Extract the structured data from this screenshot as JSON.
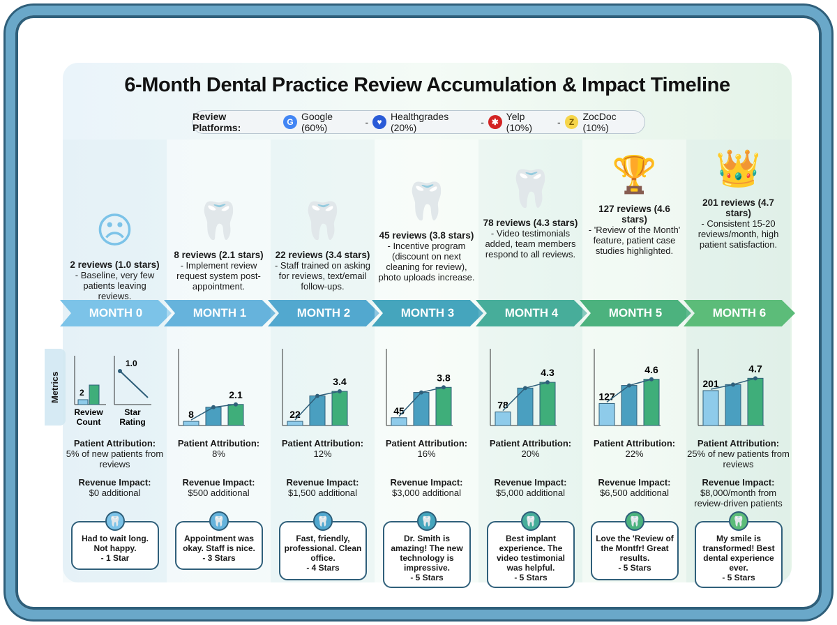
{
  "title": "6-Month Dental Practice Review Accumulation & Impact Timeline",
  "platforms": {
    "label": "Review Platforms:",
    "items": [
      {
        "name": "Google (60%)",
        "icon": "google-icon",
        "color": "#4285f4",
        "glyph": "G"
      },
      {
        "name": "Healthgrades (20%)",
        "icon": "healthgrades-icon",
        "color": "#2a5bd7",
        "glyph": "♥"
      },
      {
        "name": "Yelp (10%)",
        "icon": "yelp-icon",
        "color": "#d32323",
        "glyph": "✱"
      },
      {
        "name": "ZocDoc (10%)",
        "icon": "zocdoc-icon",
        "color": "#f6d54a",
        "glyph": "Z"
      }
    ],
    "separator": "-"
  },
  "metrics_label": "Metrics",
  "metric_labels": {
    "count": "Review Count",
    "rating": "Star Rating"
  },
  "attribution_label": "Patient Attribution:",
  "revenue_label": "Revenue Impact:",
  "months": [
    {
      "label": "MONTH 0",
      "headline": "2 reviews (1.0 stars)",
      "detail": "- Baseline, very few patients leaving reviews.",
      "reviews": 2,
      "stars": 1.0,
      "attribution": "5% of new patients from reviews",
      "revenue": "$0 additional",
      "quote": "Had to wait long. Not happy.",
      "quote_rating": "- 1 Star",
      "icon": "sad-face-icon",
      "color": "#7cc3e8"
    },
    {
      "label": "MONTH 1",
      "headline": "8 reviews (2.1 stars)",
      "detail": "- Implement review request system post-appointment.",
      "reviews": 8,
      "stars": 2.1,
      "attribution": "8%",
      "revenue": "$500 additional",
      "quote": "Appointment was okay. Staff is nice.",
      "quote_rating": "- 3 Stars",
      "icon": "tooth-arrow-up-icon",
      "color": "#66b3dc"
    },
    {
      "label": "MONTH 2",
      "headline": "22 reviews (3.4 stars)",
      "detail": "- Staff trained on asking for reviews, text/email follow-ups.",
      "reviews": 22,
      "stars": 3.4,
      "attribution": "12%",
      "revenue": "$1,500 additional",
      "quote": "Fast, friendly, professional. Clean office.",
      "quote_rating": "- 4 Stars",
      "icon": "tooth-growth-arrow-icon",
      "color": "#52a8cf"
    },
    {
      "label": "MONTH 3",
      "headline": "45 reviews (3.8 stars)",
      "detail": "- Incentive program (discount on next cleaning for review), photo uploads increase.",
      "reviews": 45,
      "stars": 3.8,
      "attribution": "16%",
      "revenue": "$3,000 additional",
      "quote": "Dr. Smith is amazing! The new technology is impressive.",
      "quote_rating": "- 5 Stars",
      "icon": "tooth-discount-photo-icon",
      "color": "#45a5bd"
    },
    {
      "label": "MONTH 4",
      "headline": "78 reviews (4.3 stars)",
      "detail": "- Video testimonials added, team members respond to all reviews.",
      "reviews": 78,
      "stars": 4.3,
      "attribution": "20%",
      "revenue": "$5,000 additional",
      "quote": "Best implant experience. The video testimonial was helpful.",
      "quote_rating": "- 5 Stars",
      "icon": "tooth-video-icon",
      "color": "#47ad9a"
    },
    {
      "label": "MONTH 5",
      "headline": "127 reviews (4.6 stars)",
      "detail": "- 'Review of the Month' feature, patient case studies highlighted.",
      "reviews": 127,
      "stars": 4.6,
      "attribution": "22%",
      "revenue": "$6,500 additional",
      "quote": "Love the 'Review of the Montfr! Great results.",
      "quote_rating": "- 5 Stars",
      "icon": "tooth-trophy-icon",
      "color": "#4cb27e"
    },
    {
      "label": "MONTH 6",
      "headline": "201 reviews (4.7 stars)",
      "detail": "- Consistent 15-20 reviews/month, high patient satisfaction.",
      "reviews": 201,
      "stars": 4.7,
      "attribution": "25% of new patients from reviews",
      "revenue": "$8,000/month from review-driven patients",
      "quote": "My smile is transformed! Best dental experience ever.",
      "quote_rating": "- 5 Stars",
      "icon": "tooth-crown-icon",
      "color": "#5cbc79"
    }
  ]
}
